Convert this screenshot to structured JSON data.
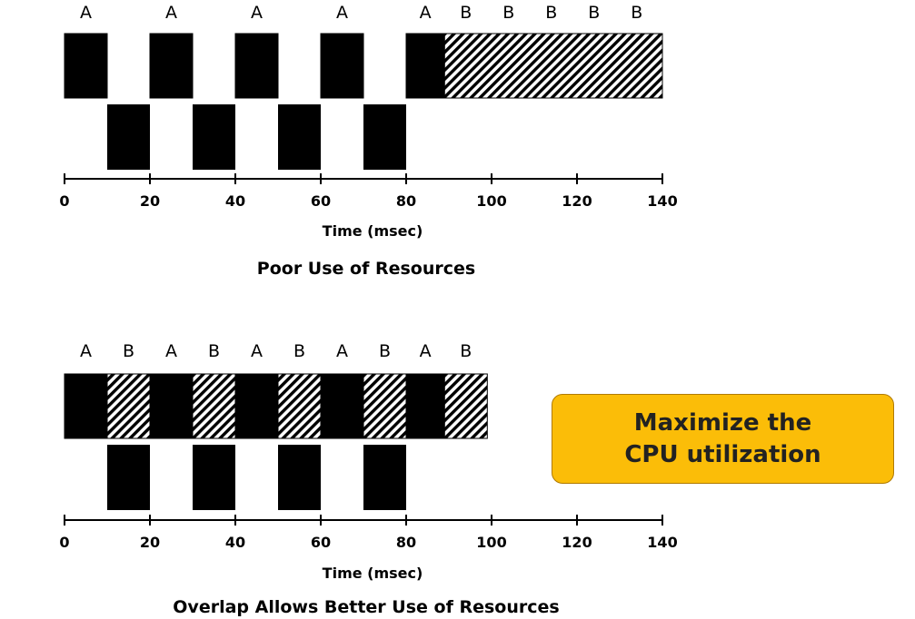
{
  "axis": {
    "label": "Time (msec)",
    "ticks": [
      0,
      20,
      40,
      60,
      80,
      100,
      120,
      140
    ]
  },
  "diagrams": [
    {
      "caption": "Poor Use of Resources",
      "top_row": [
        {
          "start": 0,
          "end": 10,
          "fill": "solid",
          "label": "A"
        },
        {
          "start": 20,
          "end": 30,
          "fill": "solid",
          "label": "A"
        },
        {
          "start": 40,
          "end": 50,
          "fill": "solid",
          "label": "A"
        },
        {
          "start": 60,
          "end": 70,
          "fill": "solid",
          "label": "A"
        },
        {
          "start": 80,
          "end": 89,
          "fill": "solid",
          "label": "A"
        },
        {
          "start": 89,
          "end": 140,
          "fill": "hatched",
          "label": ""
        }
      ],
      "extra_labels": [
        {
          "time": 94,
          "text": "B"
        },
        {
          "time": 104,
          "text": "B"
        },
        {
          "time": 114,
          "text": "B"
        },
        {
          "time": 124,
          "text": "B"
        },
        {
          "time": 134,
          "text": "B"
        }
      ],
      "bottom_row": [
        {
          "start": 10,
          "end": 20
        },
        {
          "start": 30,
          "end": 40
        },
        {
          "start": 50,
          "end": 60
        },
        {
          "start": 70,
          "end": 80
        }
      ]
    },
    {
      "caption": "Overlap Allows Better Use of Resources",
      "top_row": [
        {
          "start": 0,
          "end": 10,
          "fill": "solid",
          "label": "A"
        },
        {
          "start": 10,
          "end": 20,
          "fill": "hatched",
          "label": "B"
        },
        {
          "start": 20,
          "end": 30,
          "fill": "solid",
          "label": "A"
        },
        {
          "start": 30,
          "end": 40,
          "fill": "hatched",
          "label": "B"
        },
        {
          "start": 40,
          "end": 50,
          "fill": "solid",
          "label": "A"
        },
        {
          "start": 50,
          "end": 60,
          "fill": "hatched",
          "label": "B"
        },
        {
          "start": 60,
          "end": 70,
          "fill": "solid",
          "label": "A"
        },
        {
          "start": 70,
          "end": 80,
          "fill": "hatched",
          "label": "B"
        },
        {
          "start": 80,
          "end": 89,
          "fill": "solid",
          "label": "A"
        },
        {
          "start": 89,
          "end": 99,
          "fill": "hatched",
          "label": "B"
        }
      ],
      "extra_labels": [],
      "bottom_row": [
        {
          "start": 10,
          "end": 20
        },
        {
          "start": 30,
          "end": 40
        },
        {
          "start": 50,
          "end": 60
        },
        {
          "start": 70,
          "end": 80
        }
      ]
    }
  ],
  "callout": {
    "text": "Maximize the\nCPU utilization",
    "color": "#fbbd08"
  }
}
